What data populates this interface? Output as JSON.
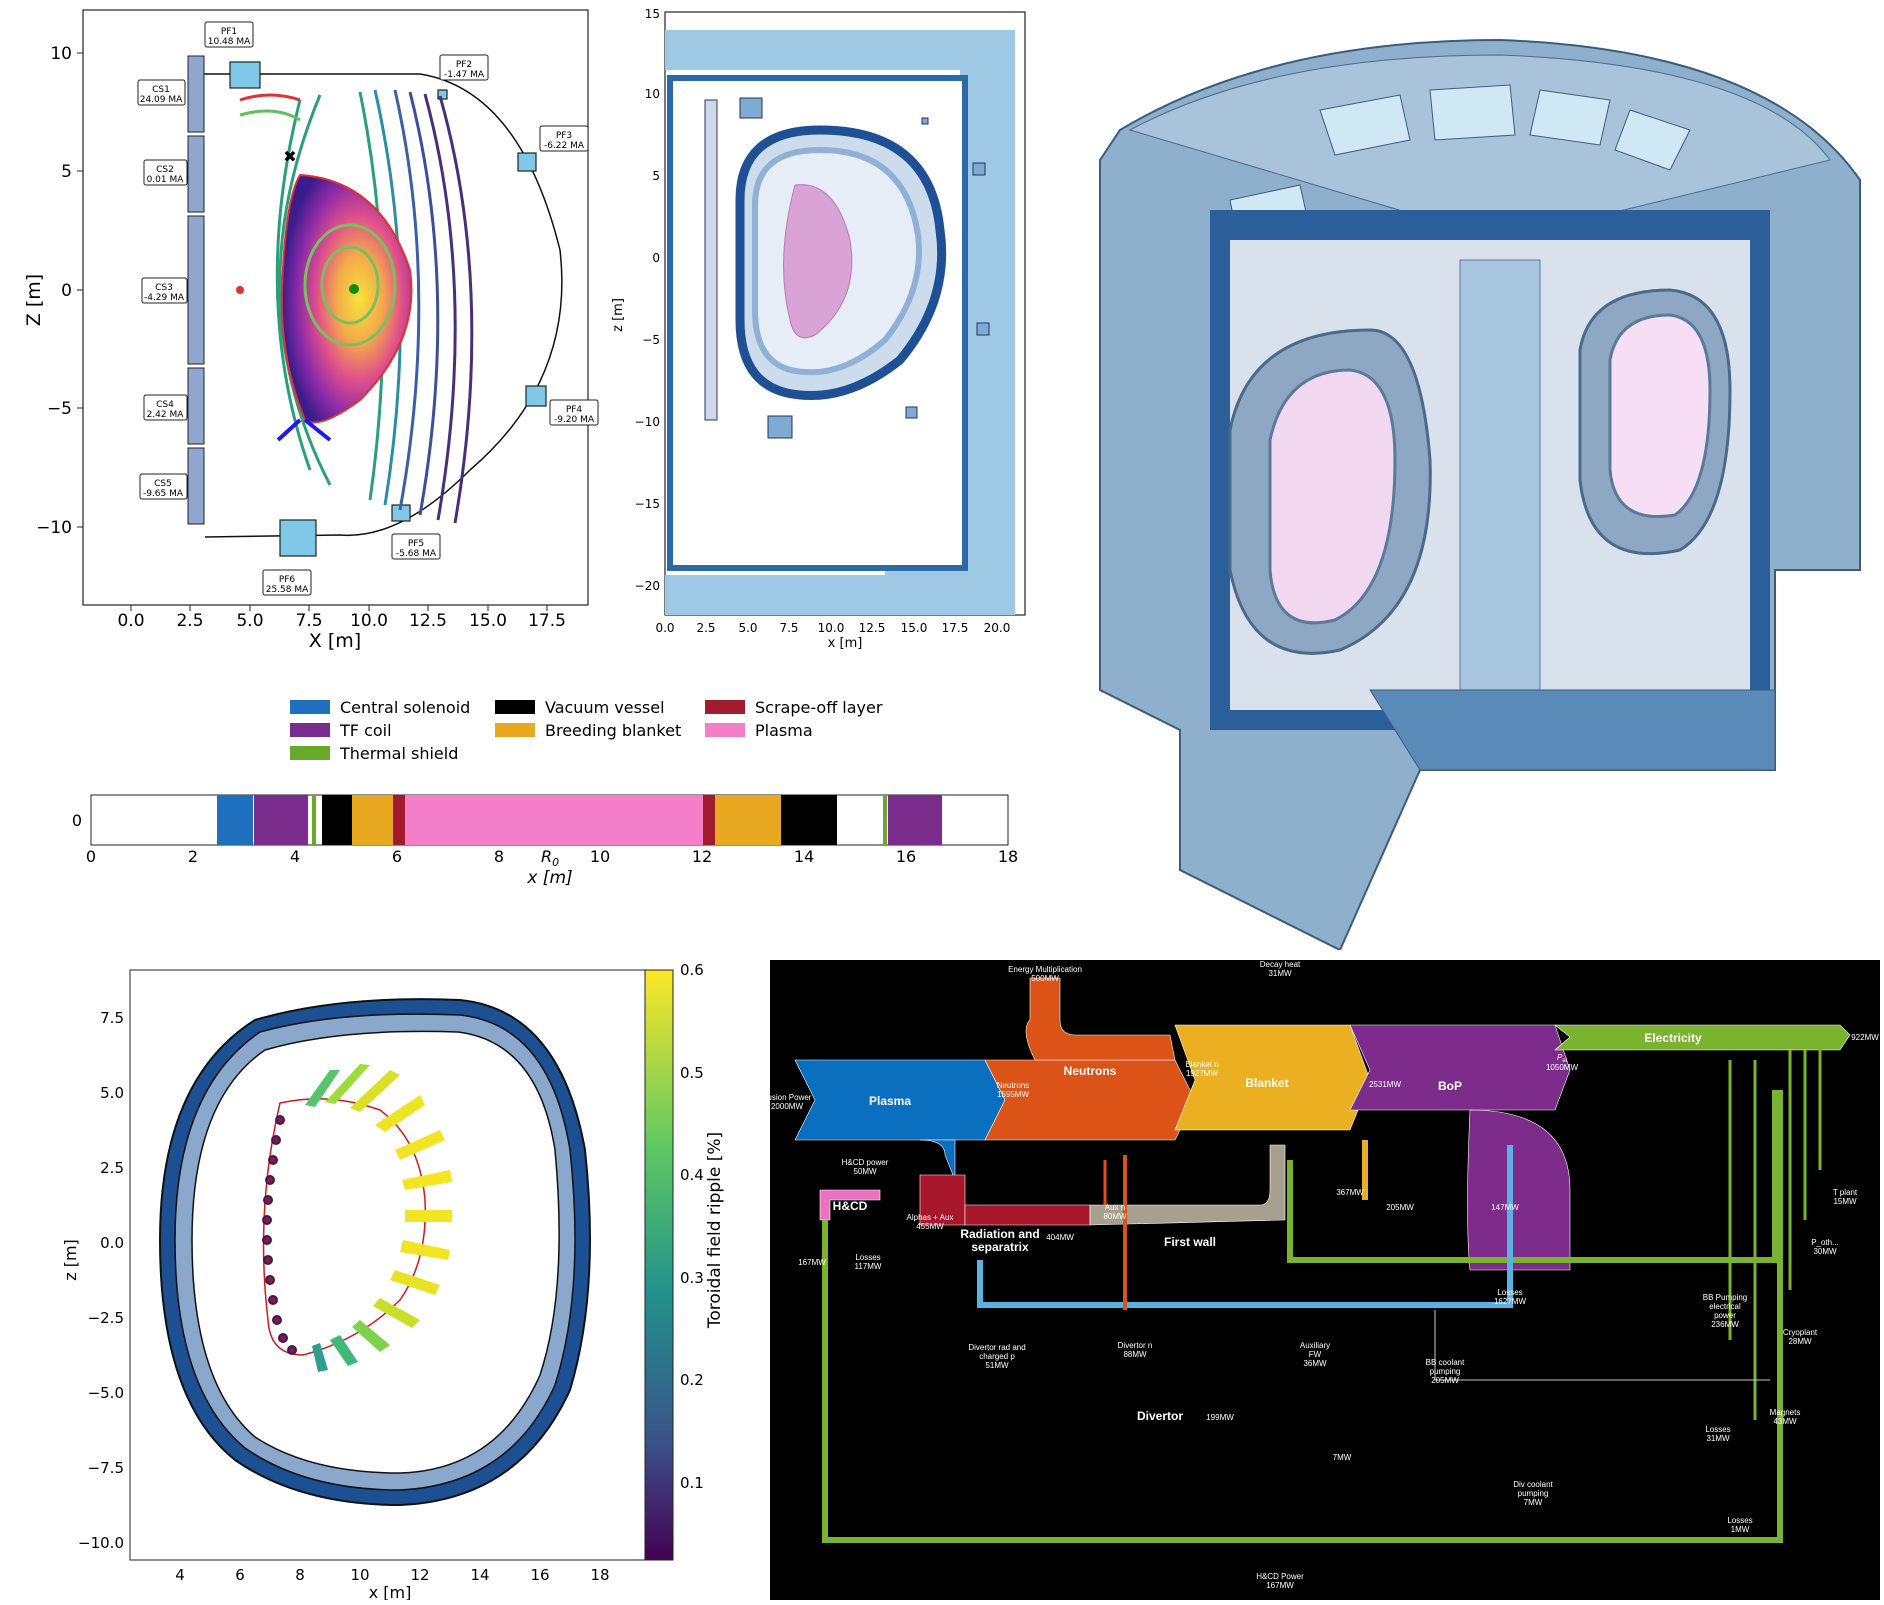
{
  "equilibrium": {
    "xlabel": "X [m]",
    "ylabel": "Z [m]",
    "xticks": [
      "0.0",
      "2.5",
      "5.0",
      "7.5",
      "10.0",
      "12.5",
      "15.0",
      "17.5"
    ],
    "yticks": [
      "10",
      "5",
      "0",
      "−5",
      "−10"
    ],
    "cs": [
      {
        "name": "CS1",
        "current": "24.09 MA"
      },
      {
        "name": "CS2",
        "current": "0.01 MA"
      },
      {
        "name": "CS3",
        "current": "-4.29 MA"
      },
      {
        "name": "CS4",
        "current": "2.42 MA"
      },
      {
        "name": "CS5",
        "current": "-9.65 MA"
      }
    ],
    "pf": [
      {
        "name": "PF1",
        "current": "10.48 MA"
      },
      {
        "name": "PF2",
        "current": "-1.47 MA"
      },
      {
        "name": "PF3",
        "current": "-6.22 MA"
      },
      {
        "name": "PF4",
        "current": "-9.20 MA"
      },
      {
        "name": "PF5",
        "current": "-5.68 MA"
      },
      {
        "name": "PF6",
        "current": "25.58 MA"
      }
    ]
  },
  "layout2d": {
    "xlabel": "x [m]",
    "ylabel": "z [m]",
    "xticks": [
      "0.0",
      "2.5",
      "5.0",
      "7.5",
      "10.0",
      "12.5",
      "15.0",
      "17.5",
      "20.0"
    ],
    "yticks": [
      "15",
      "10",
      "5",
      "0",
      "−5",
      "−10",
      "−15",
      "−20"
    ]
  },
  "radial_build": {
    "xlabel": "x [m]",
    "r0_label": "R",
    "r0_sub": "0",
    "ytick": "0",
    "xticks": [
      "0",
      "2",
      "4",
      "6",
      "8",
      "10",
      "12",
      "14",
      "16",
      "18"
    ],
    "legend": [
      {
        "label": "Central solenoid",
        "color": "#1f6fbf"
      },
      {
        "label": "TF coil",
        "color": "#7b2d8e"
      },
      {
        "label": "Thermal shield",
        "color": "#6aaa2a"
      },
      {
        "label": "Vacuum vessel",
        "color": "#000000"
      },
      {
        "label": "Breeding blanket",
        "color": "#e8a820"
      },
      {
        "label": "Scrape-off layer",
        "color": "#a11a2e"
      },
      {
        "label": "Plasma",
        "color": "#f47ec8"
      }
    ]
  },
  "ripple": {
    "xlabel": "x [m]",
    "ylabel": "z [m]",
    "xticks": [
      "4",
      "6",
      "8",
      "10",
      "12",
      "14",
      "16",
      "18"
    ],
    "yticks": [
      "7.5",
      "5.0",
      "2.5",
      "0.0",
      "−2.5",
      "−5.0",
      "−7.5",
      "−10.0"
    ],
    "colorbar_label": "Toroidal field ripple [%]",
    "colorbar_ticks": [
      "0.6",
      "0.5",
      "0.4",
      "0.3",
      "0.2",
      "0.1"
    ]
  },
  "sankey": {
    "nodes": {
      "plasma": "Plasma",
      "neutrons": "Neutrons",
      "blanket": "Blanket",
      "bop": "BoP",
      "electricity": "Electricity",
      "hcd": "H&CD",
      "radiation": "Radiation and",
      "radiation2": "separatrix",
      "first_wall": "First wall",
      "divertor": "Divertor"
    },
    "labels": {
      "energy_mult": "Energy Multiplication",
      "energy_mult_v": "500MW",
      "decay": "Decay heat",
      "decay_v": "31MW",
      "fusion": "Fusion Power",
      "fusion_v": "2000MW",
      "neutrons": "Neutrons",
      "neutrons_v": "1595MW",
      "blanket_n": "Blanket n",
      "blanket_n_v": "1927MW",
      "blanket_out": "2531MW",
      "pel": "P",
      "pel_sub": "el",
      "pel_v": "1050MW",
      "net": "922MW",
      "hcd_power": "H&CD power",
      "hcd_power_v": "50MW",
      "alphas": "Alphas + Aux",
      "alphas_v": "455MW",
      "aux_n": "Aux n",
      "aux_n_v": "80MW",
      "fw_in": "367MW",
      "fw_205": "205MW",
      "bop_147": "147MW",
      "rad_404": "404MW",
      "hcd_167": "167MW",
      "hcd_losses": "Losses",
      "hcd_losses_v": "117MW",
      "bop_losses": "Losses",
      "bop_losses_v": "1627MW",
      "bbp1": "BB Pumping",
      "bbp2": "electrical",
      "bbp3": "power",
      "bbp_v": "236MW",
      "tplant": "T plant",
      "tplant_v": "15MW",
      "poth": "P_oth...",
      "poth_v": "30MW",
      "cryo": "Cryoplant",
      "cryo_v": "28MW",
      "magnets": "Magnets",
      "magnets_v": "43MW",
      "divrad1": "Divertor rad and",
      "divrad2": "charged p",
      "divrad_v": "51MW",
      "div_n": "Divertor n",
      "div_n_v": "88MW",
      "auxfw1": "Auxiliary",
      "auxfw2": "FW",
      "auxfw_v": "36MW",
      "bbcool1": "BB coolant",
      "bbcool2": "pumping",
      "bbcool_v": "205MW",
      "div_199": "199MW",
      "l31": "Losses",
      "l31_v": "31MW",
      "sevenmw": "7MW",
      "divcool1": "Div coolant",
      "divcool2": "pumping",
      "divcool_v": "7MW",
      "l1": "Losses",
      "l1_v": "1MW",
      "hcd_bottom": "H&CD Power",
      "hcd_bottom_v": "167MW"
    }
  }
}
